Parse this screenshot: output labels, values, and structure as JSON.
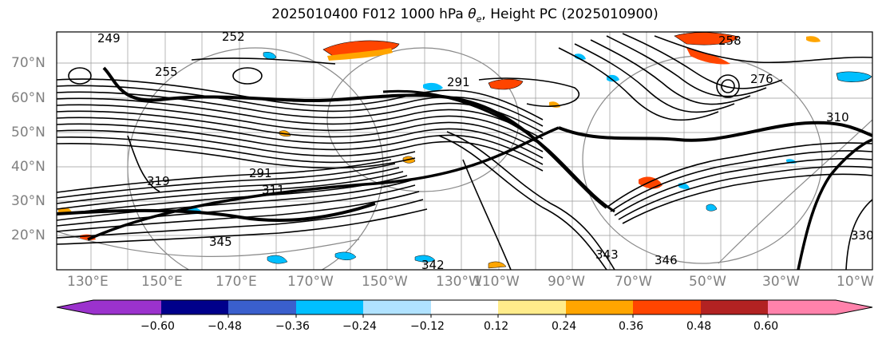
{
  "title": {
    "prefix": "2025010400 F012 1000 hPa ",
    "theta_symbol": "θ",
    "theta_sub": "e",
    "suffix": ", Height PC (2025010900)"
  },
  "lat_labels": [
    "70°N",
    "60°N",
    "50°N",
    "40°N",
    "30°N",
    "20°N"
  ],
  "lon_labels": [
    "130°E",
    "150°E",
    "170°E",
    "170°W",
    "150°W",
    "130°W",
    "110°W",
    "90°W",
    "70°W",
    "50°W",
    "30°W",
    "10°W"
  ],
  "contour_labels": [
    "249",
    "252",
    "255",
    "258",
    "291",
    "311",
    "319",
    "345",
    "342",
    "343",
    "346",
    "310",
    "276",
    "291",
    "330"
  ],
  "colorbar": {
    "ticks": [
      "−0.60",
      "−0.48",
      "−0.36",
      "−0.24",
      "−0.12",
      "0.12",
      "0.24",
      "0.36",
      "0.48",
      "0.60"
    ],
    "colors": [
      "#9b32cd",
      "#00008b",
      "#3a5fcd",
      "#00bfff",
      "#b0e2ff",
      "#ffffff",
      "#ffec8b",
      "#ffa500",
      "#ff4500",
      "#b22222",
      "#ff82ab"
    ]
  }
}
